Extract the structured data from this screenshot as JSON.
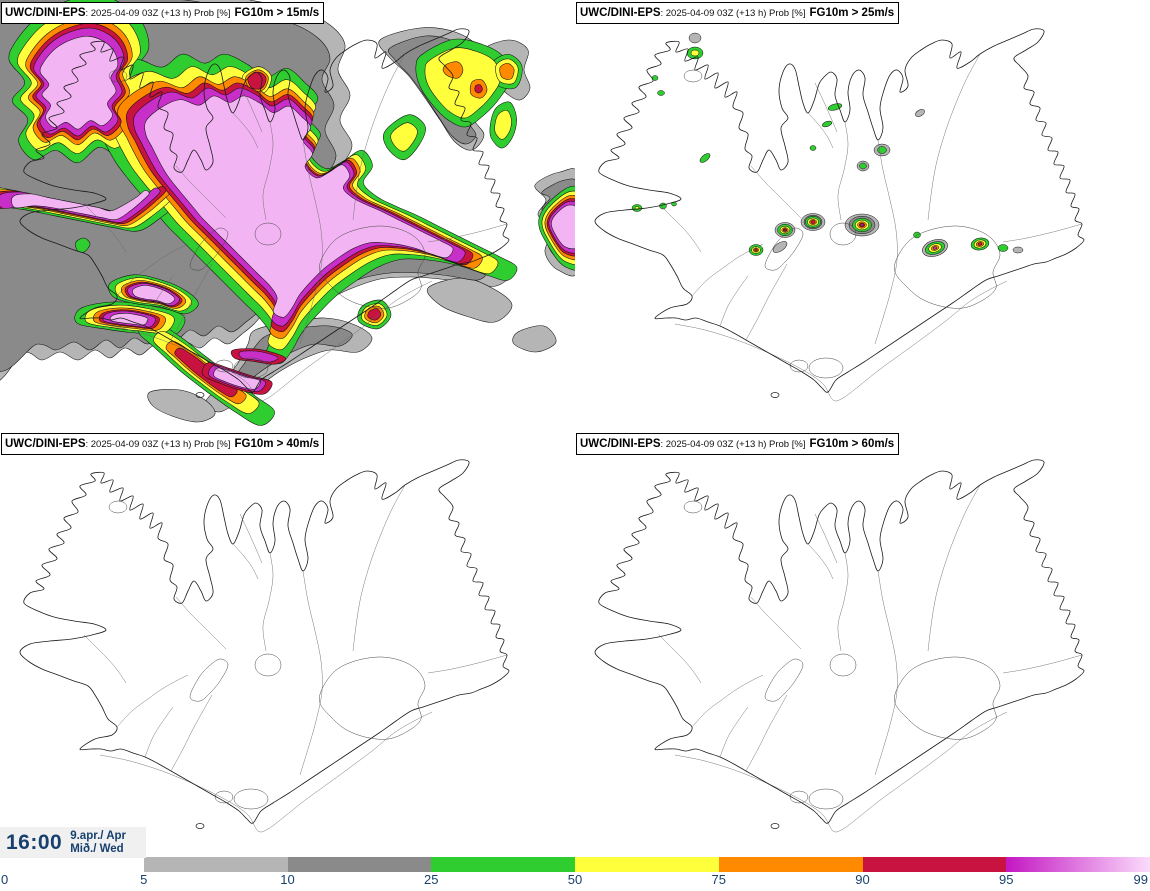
{
  "panels": [
    {
      "model": "UWC/DINI-EPS",
      "info": ": 2025-04-09 03Z (+13 h) Prob [%]",
      "threshold": "FG10m > 15m/s"
    },
    {
      "model": "UWC/DINI-EPS",
      "info": ": 2025-04-09 03Z (+13 h) Prob [%]",
      "threshold": "FG10m > 25m/s"
    },
    {
      "model": "UWC/DINI-EPS",
      "info": ": 2025-04-09 03Z (+13 h) Prob [%]",
      "threshold": "FG10m > 40m/s"
    },
    {
      "model": "UWC/DINI-EPS",
      "info": ": 2025-04-09 03Z (+13 h) Prob [%]",
      "threshold": "FG10m > 60m/s"
    }
  ],
  "clock": {
    "time": "16:00",
    "date": "9.apr./ Apr",
    "day": "Mið./ Wed"
  },
  "colorbar": {
    "tick_labels": [
      "0",
      "5",
      "10",
      "25",
      "50",
      "75",
      "90",
      "95",
      "99"
    ],
    "segments": [
      {
        "range": "5-10",
        "color": "#b5b5b5"
      },
      {
        "range": "10-25",
        "color": "#8a8a8a"
      },
      {
        "range": "25-50",
        "color": "#2fcd2f"
      },
      {
        "range": "50-75",
        "color": "#ffff3c"
      },
      {
        "range": "75-90",
        "color": "#ff8a00"
      },
      {
        "range": "90-95",
        "color": "#c81240"
      },
      {
        "range": "95-99",
        "color": "#c317c3",
        "color_end": "#fbdcfb",
        "gradient": true
      }
    ],
    "text_color": "#17406f"
  },
  "levels": {
    "p5": "#b5b5b5",
    "p10": "#8a8a8a",
    "p25": "#2fcd2f",
    "p50": "#ffff3c",
    "p75": "#ff8a00",
    "p90": "#c81240",
    "p95": "#c82fc8",
    "p99": "#f2b4f2"
  },
  "map": {
    "line_color": "#1a1a1a",
    "detail_line_color": "#666666"
  }
}
